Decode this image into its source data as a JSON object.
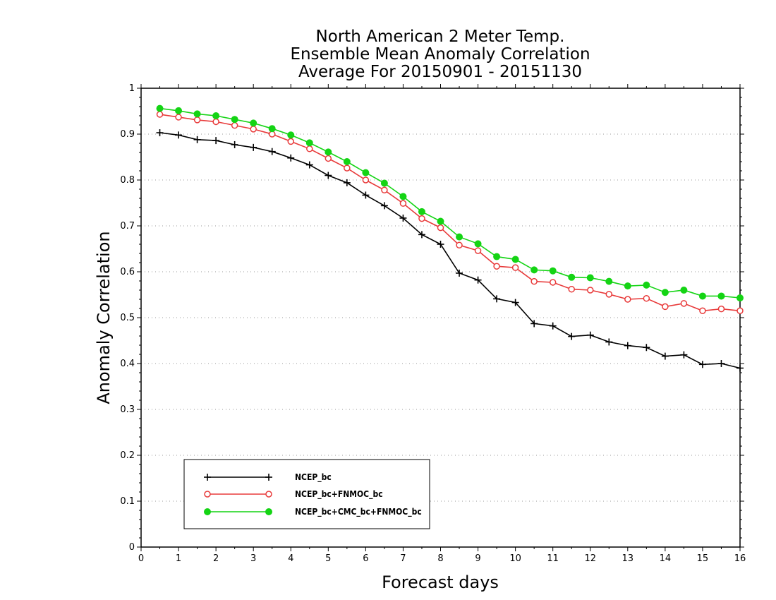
{
  "chart_data": {
    "type": "line",
    "title": [
      "North American 2 Meter Temp.",
      "Ensemble Mean Anomaly Correlation",
      "Average For 20150901 - 20151130"
    ],
    "xlabel": "Forecast days",
    "ylabel": "Anomaly Correlation",
    "xlim": [
      0,
      16
    ],
    "ylim": [
      0,
      1
    ],
    "x_ticks": [
      "0",
      "1",
      "2",
      "3",
      "4",
      "5",
      "6",
      "7",
      "8",
      "9",
      "10",
      "11",
      "12",
      "13",
      "14",
      "15",
      "16"
    ],
    "y_ticks": [
      "0",
      "0.1",
      "0.2",
      "0.3",
      "0.4",
      "0.5",
      "0.6",
      "0.7",
      "0.8",
      "0.9",
      "1"
    ],
    "grid": "horizontal dotted",
    "legend": "bottom-left",
    "x": [
      0.5,
      1,
      1.5,
      2,
      2.5,
      3,
      3.5,
      4,
      4.5,
      5,
      5.5,
      6,
      6.5,
      7,
      7.5,
      8,
      8.5,
      9,
      9.5,
      10,
      10.5,
      11,
      11.5,
      12,
      12.5,
      13,
      13.5,
      14,
      14.5,
      15,
      15.5,
      16
    ],
    "series": [
      {
        "name": "NCEP_bc",
        "color": "#000000",
        "marker": "plus",
        "values": [
          0.903,
          0.898,
          0.888,
          0.886,
          0.877,
          0.871,
          0.862,
          0.848,
          0.833,
          0.81,
          0.794,
          0.767,
          0.744,
          0.717,
          0.681,
          0.66,
          0.597,
          0.582,
          0.541,
          0.533,
          0.487,
          0.482,
          0.459,
          0.462,
          0.447,
          0.439,
          0.435,
          0.416,
          0.419,
          0.398,
          0.4,
          0.39
        ]
      },
      {
        "name": "NCEP_bc+FNMOC_bc",
        "color": "#e83a3a",
        "marker": "open-circle",
        "values": [
          0.943,
          0.937,
          0.931,
          0.927,
          0.919,
          0.911,
          0.9,
          0.884,
          0.868,
          0.847,
          0.826,
          0.8,
          0.778,
          0.749,
          0.716,
          0.696,
          0.658,
          0.646,
          0.612,
          0.609,
          0.579,
          0.577,
          0.562,
          0.56,
          0.551,
          0.54,
          0.542,
          0.524,
          0.531,
          0.515,
          0.519,
          0.515
        ]
      },
      {
        "name": "NCEP_bc+CMC_bc+FNMOC_bc",
        "color": "#14d414",
        "marker": "filled-circle",
        "values": [
          0.956,
          0.951,
          0.944,
          0.94,
          0.932,
          0.924,
          0.912,
          0.898,
          0.881,
          0.861,
          0.84,
          0.816,
          0.793,
          0.764,
          0.731,
          0.71,
          0.676,
          0.661,
          0.633,
          0.627,
          0.604,
          0.602,
          0.588,
          0.587,
          0.579,
          0.569,
          0.571,
          0.555,
          0.56,
          0.547,
          0.547,
          0.543
        ]
      }
    ]
  }
}
